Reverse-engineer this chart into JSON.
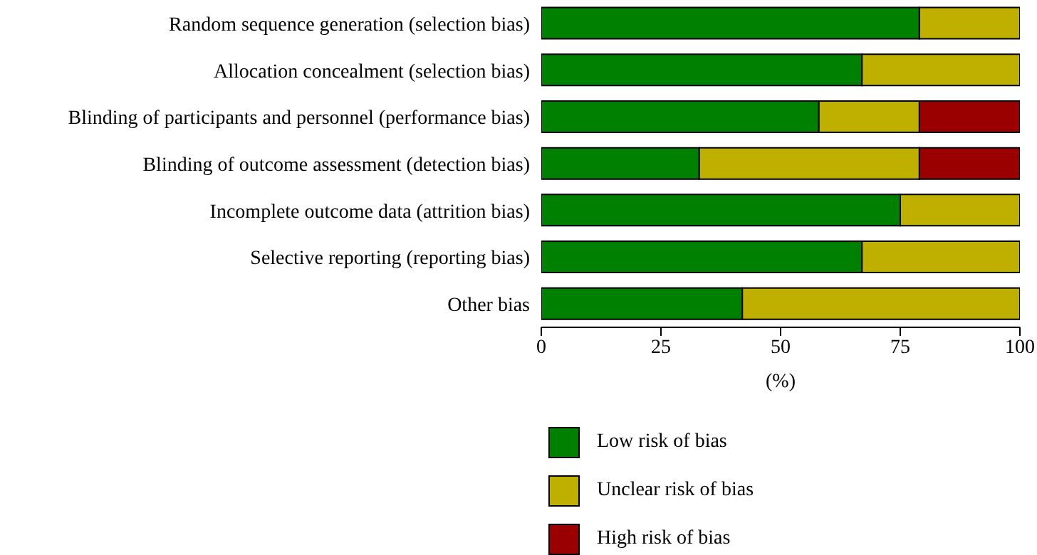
{
  "chart_data": {
    "type": "bar",
    "orientation": "horizontal",
    "stacked": true,
    "xlabel": "(%)",
    "categories": [
      "Random sequence generation (selection bias)",
      "Allocation concealment (selection bias)",
      "Blinding of participants and personnel (performance bias)",
      "Blinding of outcome assessment (detection bias)",
      "Incomplete outcome data (attrition bias)",
      "Selective reporting (reporting bias)",
      "Other bias"
    ],
    "series": [
      {
        "name": "Low risk of bias",
        "color": "#008000",
        "values": [
          79,
          67,
          58,
          33,
          75,
          67,
          42
        ]
      },
      {
        "name": "Unclear risk of bias",
        "color": "#bfb000",
        "values": [
          21,
          33,
          21,
          46,
          25,
          33,
          58
        ]
      },
      {
        "name": "High risk of bias",
        "color": "#9b0000",
        "values": [
          0,
          0,
          21,
          21,
          0,
          0,
          0
        ]
      }
    ],
    "xlim": [
      0,
      100
    ],
    "xticks": [
      0,
      25,
      50,
      75,
      100
    ],
    "grid": false,
    "legend": "bottom"
  }
}
